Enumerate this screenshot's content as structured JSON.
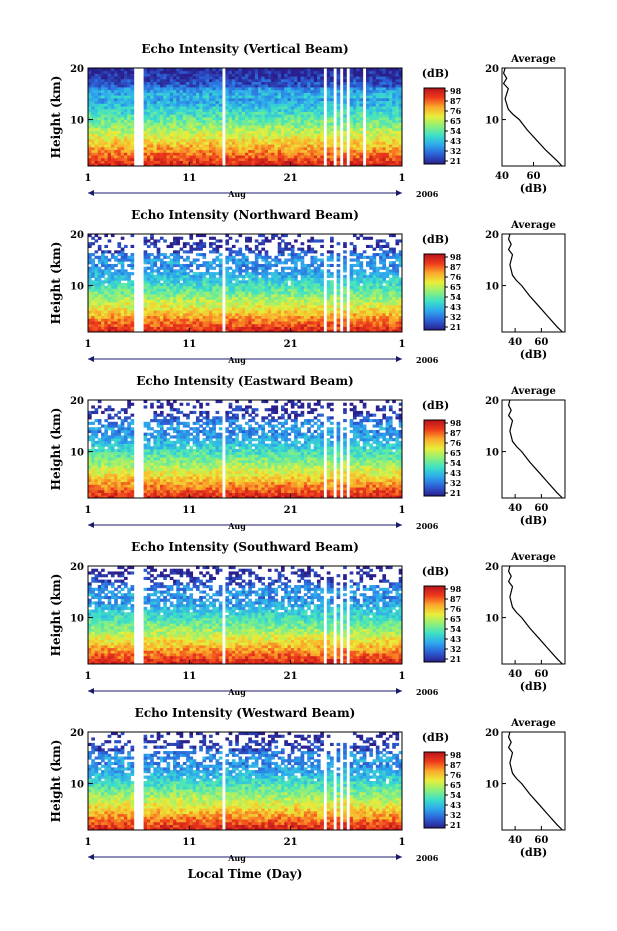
{
  "figure": {
    "xlabel": "Local Time (Day)",
    "colorbar_ticks": [
      "98",
      "87",
      "76",
      "65",
      "54",
      "43",
      "32",
      "21"
    ],
    "colorbar_unit": "(dB)",
    "colorscale": [
      "#2a1f8c",
      "#2c5fd6",
      "#2ea8ee",
      "#3de0c8",
      "#8ef07a",
      "#e9ee3a",
      "#fba92b",
      "#ee3a1c",
      "#b8131c"
    ]
  },
  "chart_data": [
    {
      "type": "heatmap",
      "title": "Echo Intensity (Vertical Beam)",
      "ylabel": "Height (km)",
      "xlim": [
        1,
        32
      ],
      "ylim": [
        1,
        20
      ],
      "xticks": [
        "1",
        "11",
        "21",
        "1"
      ],
      "yticks": [
        "10",
        "20"
      ],
      "month": "Aug",
      "year": "2006",
      "zlim": [
        21,
        98
      ],
      "zunit": "dB",
      "data_gaps_day": [
        [
          5.4,
          6.4
        ],
        [
          13.2,
          13.4
        ],
        [
          14.3,
          14.5
        ],
        [
          24.3,
          24.6
        ],
        [
          25.2,
          25.4
        ],
        [
          25.9,
          26.1
        ],
        [
          26.6,
          26.8
        ],
        [
          28.2,
          28.4
        ]
      ],
      "profile": {
        "title": "Average",
        "xlabel": "(dB)",
        "xticks": [
          "40",
          "60"
        ],
        "xlim": [
          40,
          80
        ],
        "ylim": [
          1,
          20
        ],
        "height_km": [
          1,
          2,
          4,
          6,
          8,
          10,
          11,
          12,
          14,
          16,
          17,
          18,
          19,
          20
        ],
        "intensity_db": [
          78,
          75,
          68,
          62,
          56,
          51,
          47,
          44,
          42,
          44,
          41,
          43,
          41,
          42
        ]
      }
    },
    {
      "type": "heatmap",
      "title": "Echo Intensity (Northward Beam)",
      "ylabel": "Height (km)",
      "xlim": [
        1,
        32
      ],
      "ylim": [
        1,
        20
      ],
      "xticks": [
        "1",
        "11",
        "21",
        "1"
      ],
      "yticks": [
        "10",
        "20"
      ],
      "month": "Aug",
      "year": "2006",
      "zlim": [
        21,
        98
      ],
      "zunit": "dB",
      "data_gaps_day": [
        [
          5.4,
          6.4
        ],
        [
          13.2,
          13.4
        ],
        [
          14.3,
          14.5
        ],
        [
          24.3,
          24.6
        ],
        [
          25.2,
          25.4
        ],
        [
          25.9,
          26.1
        ],
        [
          26.6,
          26.8
        ]
      ],
      "profile": {
        "title": "Average",
        "xlabel": "(dB)",
        "xticks": [
          "40",
          "60"
        ],
        "xlim": [
          30,
          78
        ],
        "ylim": [
          1,
          20
        ],
        "height_km": [
          1,
          2,
          4,
          6,
          8,
          10,
          11,
          12,
          14,
          16,
          17,
          18,
          19,
          20
        ],
        "intensity_db": [
          76,
          72,
          65,
          58,
          51,
          45,
          41,
          38,
          36,
          38,
          35,
          37,
          35,
          36
        ]
      }
    },
    {
      "type": "heatmap",
      "title": "Echo Intensity (Eastward Beam)",
      "ylabel": "Height (km)",
      "xlim": [
        1,
        32
      ],
      "ylim": [
        1,
        20
      ],
      "xticks": [
        "1",
        "11",
        "21",
        "1"
      ],
      "yticks": [
        "10",
        "20"
      ],
      "month": "Aug",
      "year": "2006",
      "zlim": [
        21,
        98
      ],
      "zunit": "dB",
      "data_gaps_day": [
        [
          5.4,
          6.4
        ],
        [
          13.2,
          13.4
        ],
        [
          14.3,
          14.5
        ],
        [
          24.3,
          24.6
        ],
        [
          25.2,
          25.4
        ],
        [
          25.9,
          26.1
        ],
        [
          26.6,
          26.8
        ]
      ],
      "profile": {
        "title": "Average",
        "xlabel": "(dB)",
        "xticks": [
          "40",
          "60"
        ],
        "xlim": [
          30,
          78
        ],
        "ylim": [
          1,
          20
        ],
        "height_km": [
          1,
          2,
          4,
          6,
          8,
          10,
          11,
          12,
          14,
          16,
          17,
          18,
          19,
          20
        ],
        "intensity_db": [
          76,
          72,
          65,
          58,
          51,
          45,
          41,
          38,
          36,
          38,
          35,
          37,
          35,
          36
        ]
      }
    },
    {
      "type": "heatmap",
      "title": "Echo Intensity (Southward Beam)",
      "ylabel": "Height (km)",
      "xlim": [
        1,
        32
      ],
      "ylim": [
        1,
        20
      ],
      "xticks": [
        "1",
        "11",
        "21",
        "1"
      ],
      "yticks": [
        "10",
        "20"
      ],
      "month": "Aug",
      "year": "2006",
      "zlim": [
        21,
        98
      ],
      "zunit": "dB",
      "data_gaps_day": [
        [
          5.4,
          6.4
        ],
        [
          13.2,
          13.4
        ],
        [
          14.3,
          14.5
        ],
        [
          24.3,
          24.6
        ],
        [
          25.2,
          25.4
        ],
        [
          25.9,
          26.1
        ],
        [
          26.6,
          26.8
        ]
      ],
      "profile": {
        "title": "Average",
        "xlabel": "(dB)",
        "xticks": [
          "40",
          "60"
        ],
        "xlim": [
          30,
          78
        ],
        "ylim": [
          1,
          20
        ],
        "height_km": [
          1,
          2,
          4,
          6,
          8,
          10,
          11,
          12,
          14,
          16,
          17,
          18,
          19,
          20
        ],
        "intensity_db": [
          76,
          72,
          65,
          58,
          51,
          45,
          41,
          38,
          36,
          38,
          35,
          37,
          35,
          36
        ]
      }
    },
    {
      "type": "heatmap",
      "title": "Echo Intensity (Westward Beam)",
      "ylabel": "Height (km)",
      "xlim": [
        1,
        32
      ],
      "ylim": [
        1,
        20
      ],
      "xticks": [
        "1",
        "11",
        "21",
        "1"
      ],
      "yticks": [
        "10",
        "20"
      ],
      "month": "Aug",
      "year": "2006",
      "zlim": [
        21,
        98
      ],
      "zunit": "dB",
      "data_gaps_day": [
        [
          5.4,
          6.4
        ],
        [
          13.2,
          13.4
        ],
        [
          14.3,
          14.5
        ],
        [
          24.3,
          24.6
        ],
        [
          25.2,
          25.4
        ],
        [
          25.9,
          26.1
        ],
        [
          26.6,
          26.8
        ]
      ],
      "profile": {
        "title": "Average",
        "xlabel": "(dB)",
        "xticks": [
          "40",
          "60"
        ],
        "xlim": [
          30,
          78
        ],
        "ylim": [
          1,
          20
        ],
        "height_km": [
          1,
          2,
          4,
          6,
          8,
          10,
          11,
          12,
          14,
          16,
          17,
          18,
          19,
          20
        ],
        "intensity_db": [
          76,
          72,
          65,
          58,
          51,
          45,
          41,
          38,
          36,
          38,
          35,
          37,
          35,
          36
        ]
      }
    }
  ]
}
